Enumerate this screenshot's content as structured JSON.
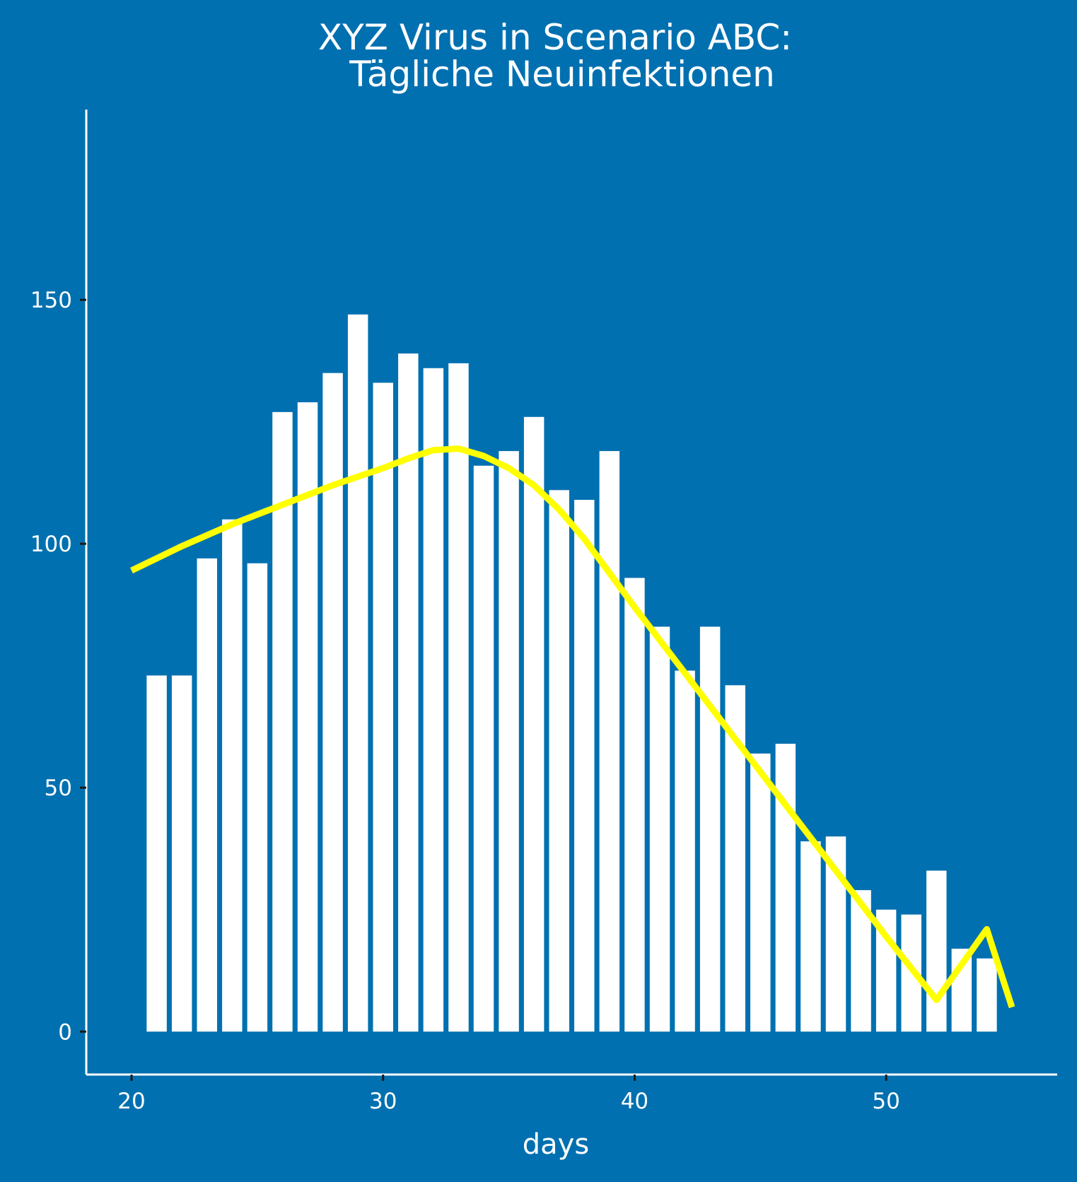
{
  "chart_data": {
    "type": "bar",
    "title": "XYZ Virus in Scenario ABC:",
    "subtitle": "Tägliche Neuinfektionen",
    "xlabel": "days",
    "ylabel": "",
    "xlim": [
      18.2,
      56.8
    ],
    "ylim": [
      -8.8,
      189
    ],
    "xticks": [
      20,
      30,
      40,
      50
    ],
    "yticks": [
      0,
      50,
      100,
      150
    ],
    "grid": false,
    "legend": "none",
    "series": [
      {
        "type": "bar",
        "color": "#ffffff",
        "x": [
          21,
          22,
          23,
          24,
          25,
          26,
          27,
          28,
          29,
          30,
          31,
          32,
          33,
          34,
          35,
          36,
          37,
          38,
          39,
          40,
          41,
          42,
          43,
          44,
          45,
          46,
          47,
          48,
          49,
          50,
          51,
          52,
          53,
          54
        ],
        "values": [
          73,
          73,
          97,
          105,
          96,
          127,
          129,
          135,
          147,
          133,
          139,
          136,
          137,
          116,
          119,
          126,
          111,
          109,
          119,
          93,
          83,
          74,
          83,
          71,
          57,
          59,
          39,
          40,
          29,
          25,
          24,
          33,
          17,
          15
        ]
      },
      {
        "type": "line",
        "color": "#ffff00",
        "x": [
          20,
          22,
          24,
          26,
          28,
          30,
          31,
          32,
          33,
          34,
          35,
          36,
          37,
          38,
          39,
          40,
          42,
          44,
          46,
          48,
          50,
          52,
          54,
          55
        ],
        "values": [
          94.5,
          99.5,
          104,
          108,
          112,
          115.5,
          117.5,
          119.2,
          119.5,
          118,
          115.5,
          112,
          107,
          101,
          94,
          87,
          73.5,
          60,
          46.5,
          33,
          19.5,
          6.5,
          21,
          5
        ]
      }
    ]
  },
  "style": {
    "background": "#0070b0",
    "axis_color": "#ffffff",
    "tick_mark_color": "#1a1a1a",
    "bar_color": "#ffffff",
    "line_color": "#ffff00"
  }
}
